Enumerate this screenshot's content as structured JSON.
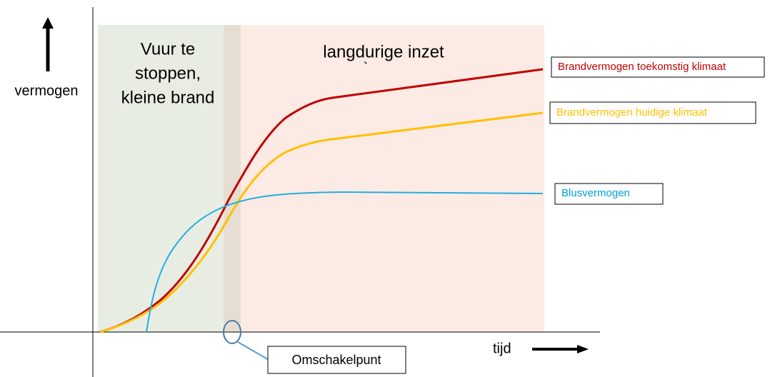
{
  "axes": {
    "y_label": "vermogen",
    "x_label": "tijd"
  },
  "zones": [
    {
      "lines": [
        "Vuur te",
        "stoppen,",
        "kleine brand"
      ]
    },
    {
      "lines": [
        "langdurige inzet",
        "`"
      ]
    }
  ],
  "legend": [
    {
      "label": "Brandvermogen toekomstig klimaat"
    },
    {
      "label": "Brandvermogen huidige klimaat"
    },
    {
      "label": "Blusvermogen"
    }
  ],
  "callout": "Omschakelpunt"
}
